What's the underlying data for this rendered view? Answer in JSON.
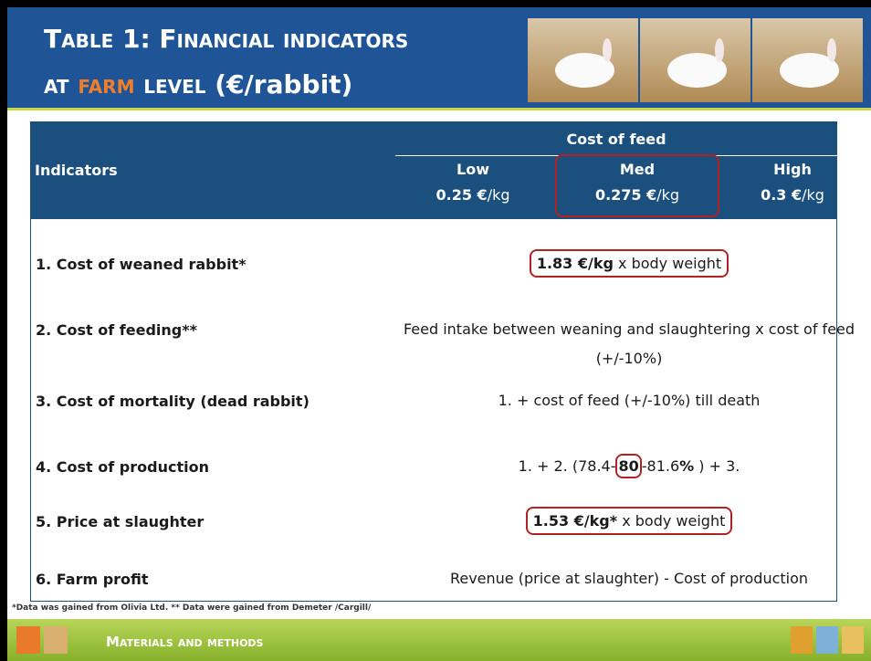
{
  "header": {
    "title_line1": "Table 1: Financial indicators",
    "title_line2_parts": [
      "at ",
      "farm",
      " level ",
      "(€/rabbit)"
    ]
  },
  "table": {
    "indicators_header": "Indicators",
    "group_header": "Cost of feed",
    "columns": [
      {
        "level": "Low",
        "price": "0.25 €",
        "unit": "/kg"
      },
      {
        "level": "Med",
        "price": "0.275 €",
        "unit": "/kg"
      },
      {
        "level": "High",
        "price": "0.3 €",
        "unit": "/kg"
      }
    ],
    "rows": [
      {
        "label": "1. Cost of weaned rabbit*",
        "value": [
          {
            "text": "1.83 €/kg",
            "bold": true
          },
          {
            "text": " x body weight",
            "bold": false
          }
        ]
      },
      {
        "label": "2. Cost of feeding**",
        "value": [
          {
            "text": "Feed intake between weaning and slaughtering x cost of feed (+/-10%)",
            "bold": false
          }
        ]
      },
      {
        "label": "3. Cost of mortality (dead rabbit)",
        "value": [
          {
            "text": "1.   + cost of feed (+/-10%) till death",
            "bold": false
          }
        ]
      },
      {
        "label": "4. Cost of production",
        "value": [
          {
            "text": "1.   + 2. (78.4-",
            "bold": false
          },
          {
            "text": "80",
            "bold": true
          },
          {
            "text": "-81.6",
            "bold": false
          },
          {
            "text": "%",
            "bold": true
          },
          {
            "text": " ) + 3.",
            "bold": false
          }
        ]
      },
      {
        "label": "5. Price at slaughter",
        "value": [
          {
            "text": "1.53 €/kg*",
            "bold": true
          },
          {
            "text": " x body weight",
            "bold": false
          }
        ]
      },
      {
        "label": "6. Farm profit",
        "value": [
          {
            "text": "Revenue (price at slaughter) - Cost of production",
            "bold": false
          }
        ]
      }
    ]
  },
  "footnote": "*Data was gained from Olivia Ltd. ** Data were gained from Demeter /Cargill/",
  "footer": {
    "section": "Materials and methods"
  }
}
